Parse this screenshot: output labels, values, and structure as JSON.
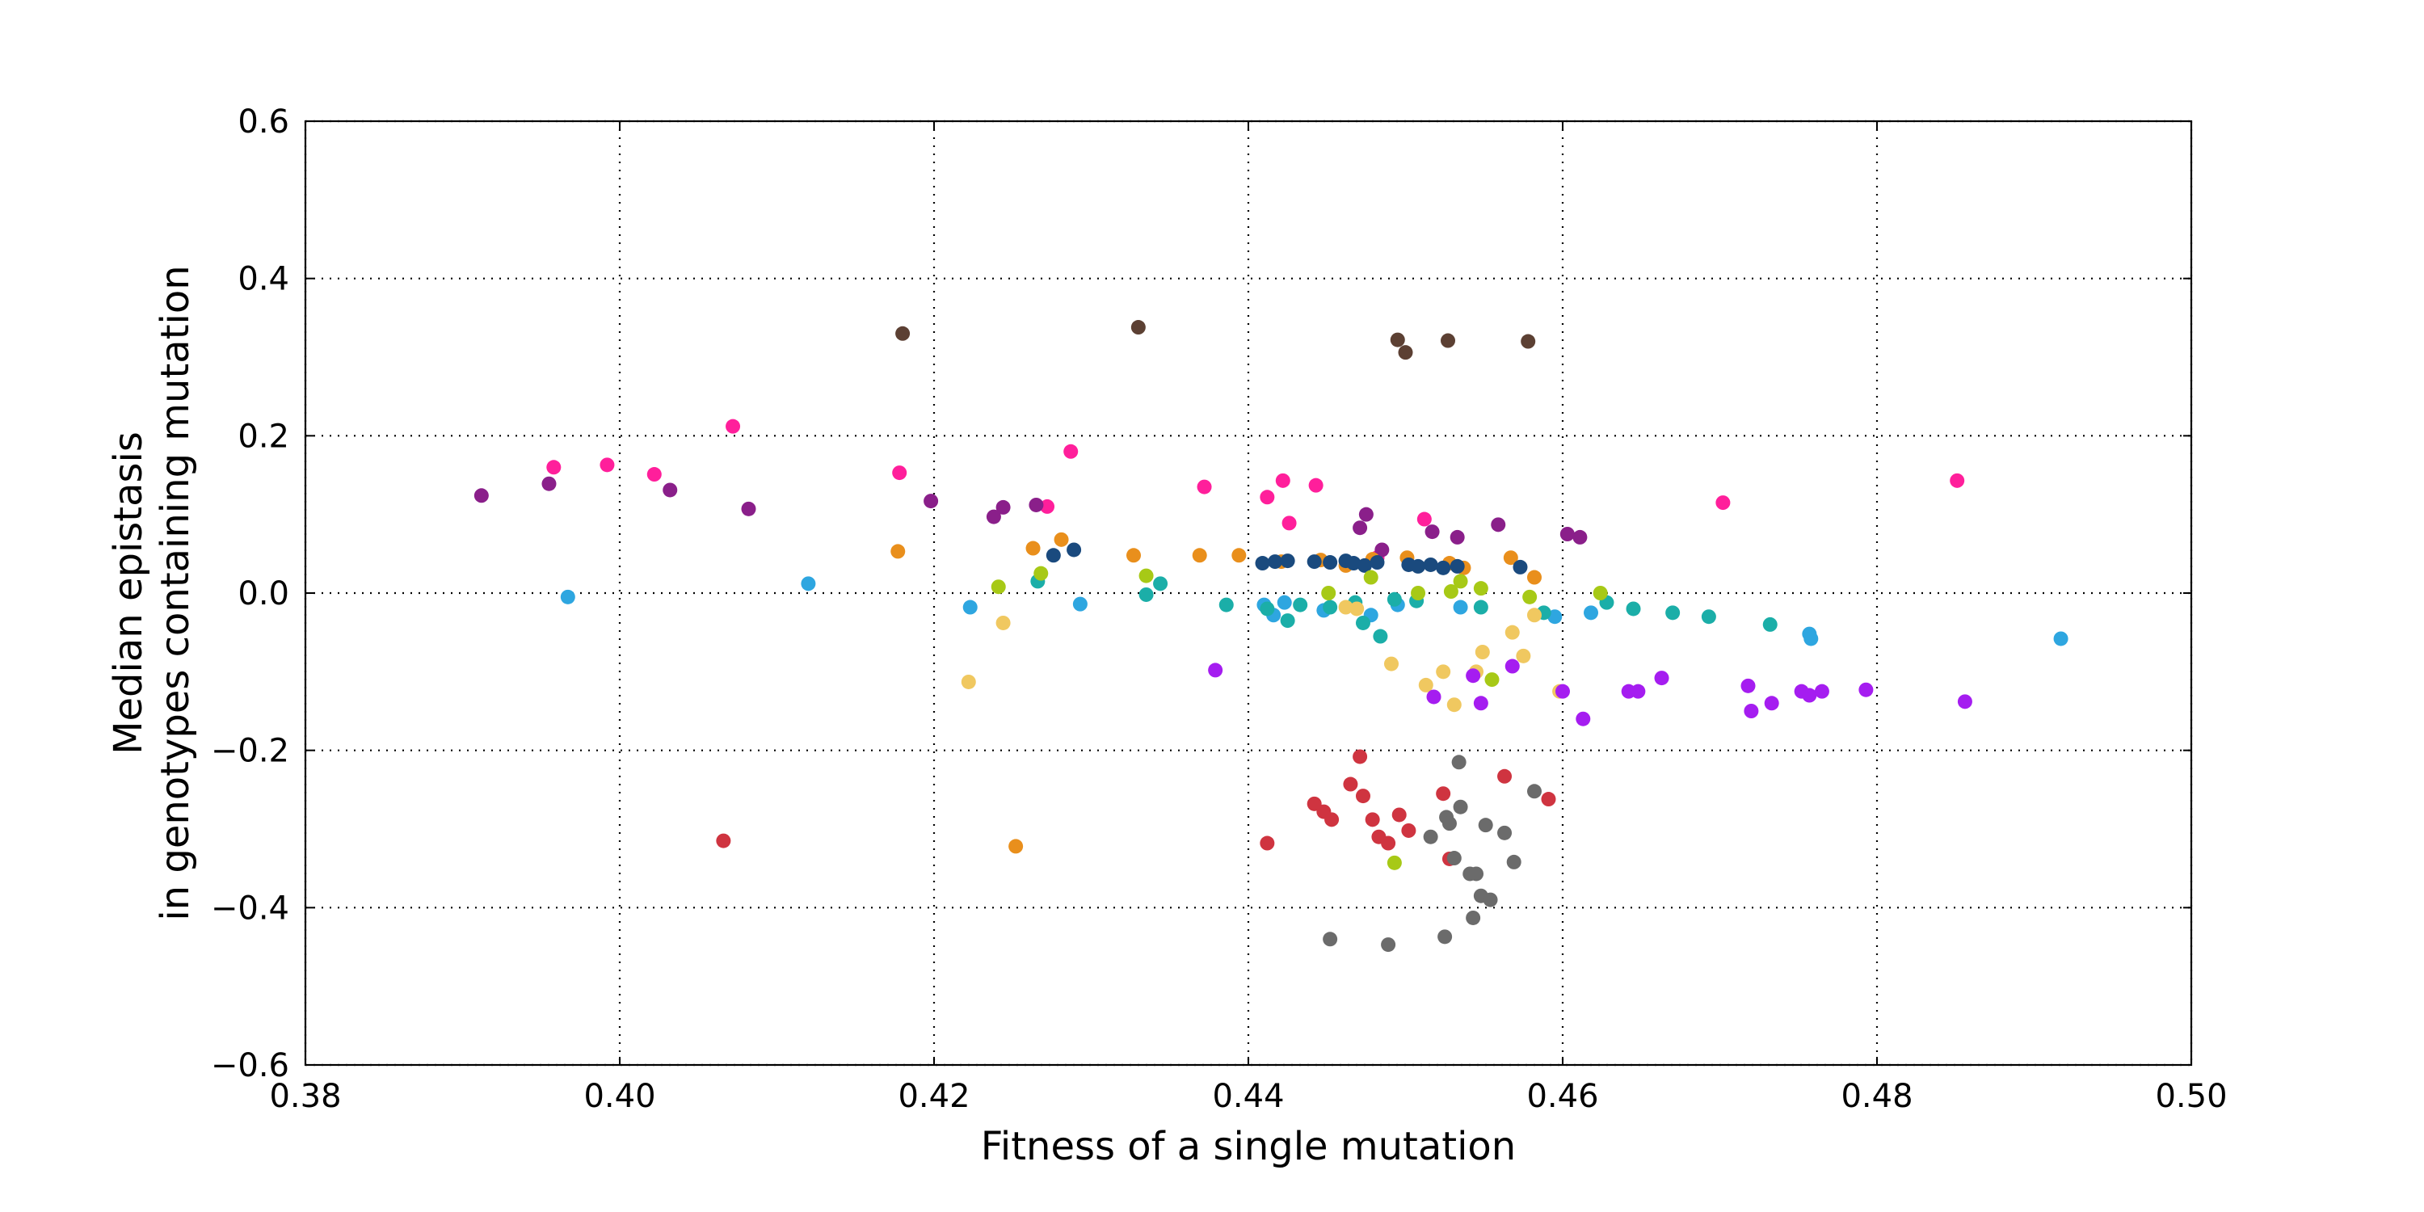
{
  "chart_data": {
    "type": "scatter",
    "title": "",
    "xlabel": "Fitness of a single mutation",
    "ylabel_lines": [
      "Median epistasis",
      "in genotypes containing mutation"
    ],
    "xlim": [
      0.38,
      0.5
    ],
    "ylim": [
      -0.6,
      0.6
    ],
    "xticks": [
      0.38,
      0.4,
      0.42,
      0.44,
      0.46,
      0.48,
      0.5
    ],
    "yticks": [
      -0.6,
      -0.4,
      -0.2,
      0.0,
      0.2,
      0.4,
      0.6
    ],
    "xtick_labels": [
      "0.38",
      "0.40",
      "0.42",
      "0.44",
      "0.46",
      "0.48",
      "0.50"
    ],
    "ytick_labels": [
      "−0.6",
      "−0.4",
      "−0.2",
      "0.0",
      "0.2",
      "0.4",
      "0.6"
    ],
    "grid": true,
    "legend": false,
    "series": [
      {
        "color": "#5c4033",
        "x": [
          0.418,
          0.433,
          0.4495,
          0.45,
          0.4527,
          0.4578
        ],
        "y": [
          0.33,
          0.338,
          0.322,
          0.306,
          0.321,
          0.32
        ]
      },
      {
        "color": "#ff1f9b",
        "x": [
          0.3958,
          0.3992,
          0.4022,
          0.4072,
          0.4178,
          0.4272,
          0.4287,
          0.4372,
          0.4412,
          0.4422,
          0.4426,
          0.4443,
          0.4482,
          0.4512,
          0.4702,
          0.4851
        ],
        "y": [
          0.16,
          0.163,
          0.151,
          0.212,
          0.153,
          0.11,
          0.18,
          0.135,
          0.122,
          0.143,
          0.089,
          0.137,
          0.045,
          0.094,
          0.115,
          0.143
        ]
      },
      {
        "color": "#8a1f8a",
        "x": [
          0.3912,
          0.3955,
          0.4032,
          0.4082,
          0.4198,
          0.4238,
          0.4244,
          0.4265,
          0.4471,
          0.4475,
          0.4485,
          0.4517,
          0.4533,
          0.4559,
          0.4603,
          0.4611
        ],
        "y": [
          0.124,
          0.139,
          0.131,
          0.107,
          0.117,
          0.097,
          0.109,
          0.112,
          0.083,
          0.1,
          0.055,
          0.078,
          0.071,
          0.087,
          0.075,
          0.071
        ]
      },
      {
        "color": "#e98f1c",
        "x": [
          0.4177,
          0.4263,
          0.4281,
          0.4327,
          0.4369,
          0.4394,
          0.4421,
          0.4446,
          0.4462,
          0.4479,
          0.4501,
          0.4528,
          0.4537,
          0.4567,
          0.4582,
          0.4252
        ],
        "y": [
          0.053,
          0.057,
          0.068,
          0.048,
          0.048,
          0.048,
          0.04,
          0.042,
          0.035,
          0.043,
          0.045,
          0.038,
          0.032,
          0.045,
          0.02,
          -0.322
        ]
      },
      {
        "color": "#1a4a7e",
        "x": [
          0.4276,
          0.4289,
          0.4409,
          0.4417,
          0.4425,
          0.4442,
          0.4452,
          0.4462,
          0.4467,
          0.4474,
          0.4482,
          0.4502,
          0.4508,
          0.4516,
          0.4524,
          0.4533,
          0.4573
        ],
        "y": [
          0.048,
          0.055,
          0.038,
          0.04,
          0.041,
          0.04,
          0.039,
          0.041,
          0.038,
          0.035,
          0.039,
          0.036,
          0.034,
          0.036,
          0.032,
          0.034,
          0.033
        ]
      },
      {
        "color": "#2ea6e0",
        "x": [
          0.3967,
          0.412,
          0.4223,
          0.4293,
          0.441,
          0.4416,
          0.4423,
          0.4448,
          0.4478,
          0.4495,
          0.4535,
          0.4595,
          0.4618,
          0.4757,
          0.4758,
          0.4917
        ],
        "y": [
          -0.005,
          0.012,
          -0.018,
          -0.014,
          -0.015,
          -0.028,
          -0.012,
          -0.022,
          -0.028,
          -0.015,
          -0.018,
          -0.03,
          -0.025,
          -0.052,
          -0.058,
          -0.058
        ]
      },
      {
        "color": "#1baea8",
        "x": [
          0.4266,
          0.4335,
          0.4344,
          0.4386,
          0.4412,
          0.4425,
          0.4433,
          0.4452,
          0.4468,
          0.4473,
          0.4484,
          0.4493,
          0.4507,
          0.4548,
          0.4588,
          0.4628,
          0.4645,
          0.467,
          0.4693,
          0.4732
        ],
        "y": [
          0.015,
          -0.002,
          0.012,
          -0.015,
          -0.02,
          -0.035,
          -0.015,
          -0.018,
          -0.012,
          -0.038,
          -0.055,
          -0.008,
          -0.01,
          -0.018,
          -0.025,
          -0.012,
          -0.02,
          -0.025,
          -0.03,
          -0.04
        ]
      },
      {
        "color": "#a7c916",
        "x": [
          0.4241,
          0.4268,
          0.4335,
          0.4451,
          0.4478,
          0.4508,
          0.4529,
          0.4535,
          0.4548,
          0.4555,
          0.4579,
          0.4624,
          0.4493
        ],
        "y": [
          0.008,
          0.025,
          0.022,
          0.0,
          0.02,
          0.0,
          0.002,
          0.015,
          0.006,
          -0.11,
          -0.005,
          0.0,
          -0.343
        ]
      },
      {
        "color": "#f0c860",
        "x": [
          0.4222,
          0.4244,
          0.4462,
          0.4469,
          0.4491,
          0.4513,
          0.4524,
          0.4531,
          0.4545,
          0.4549,
          0.4568,
          0.4575,
          0.4582,
          0.4598
        ],
        "y": [
          -0.113,
          -0.038,
          -0.018,
          -0.02,
          -0.09,
          -0.117,
          -0.1,
          -0.142,
          -0.1,
          -0.075,
          -0.05,
          -0.08,
          -0.028,
          -0.125
        ]
      },
      {
        "color": "#a51df0",
        "x": [
          0.4379,
          0.4518,
          0.4543,
          0.4548,
          0.4568,
          0.46,
          0.4613,
          0.4642,
          0.4648,
          0.4663,
          0.4718,
          0.472,
          0.4733,
          0.4752,
          0.4757,
          0.4765,
          0.4793,
          0.4856
        ],
        "y": [
          -0.098,
          -0.132,
          -0.105,
          -0.14,
          -0.093,
          -0.125,
          -0.16,
          -0.125,
          -0.125,
          -0.108,
          -0.118,
          -0.15,
          -0.14,
          -0.125,
          -0.13,
          -0.125,
          -0.123,
          -0.138
        ]
      },
      {
        "color": "#cf3440",
        "x": [
          0.4066,
          0.4412,
          0.4442,
          0.4448,
          0.4453,
          0.4465,
          0.4471,
          0.4473,
          0.4479,
          0.4483,
          0.4489,
          0.4496,
          0.4502,
          0.4524,
          0.4528,
          0.4563,
          0.4591
        ],
        "y": [
          -0.315,
          -0.318,
          -0.268,
          -0.278,
          -0.288,
          -0.243,
          -0.208,
          -0.258,
          -0.288,
          -0.31,
          -0.318,
          -0.282,
          -0.302,
          -0.255,
          -0.338,
          -0.233,
          -0.262
        ]
      },
      {
        "color": "#6b6b6b",
        "x": [
          0.4452,
          0.4489,
          0.4516,
          0.4525,
          0.4526,
          0.4528,
          0.4531,
          0.4534,
          0.4535,
          0.4541,
          0.4543,
          0.4545,
          0.4548,
          0.4551,
          0.4554,
          0.4563,
          0.4569,
          0.4582
        ],
        "y": [
          -0.44,
          -0.447,
          -0.31,
          -0.437,
          -0.285,
          -0.293,
          -0.337,
          -0.215,
          -0.272,
          -0.357,
          -0.413,
          -0.357,
          -0.385,
          -0.295,
          -0.39,
          -0.305,
          -0.342,
          -0.252
        ]
      }
    ]
  }
}
